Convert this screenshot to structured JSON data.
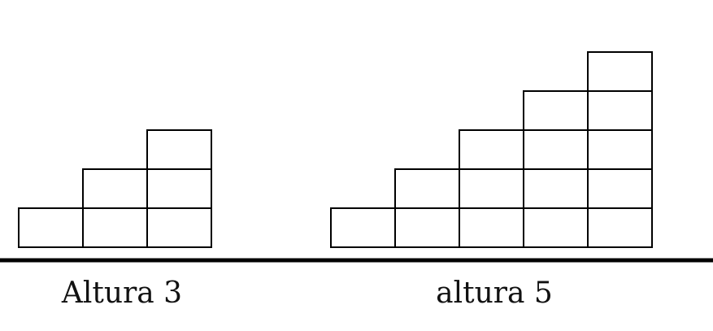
{
  "staircases": [
    {
      "label": "Altura 3",
      "height": 3
    },
    {
      "label": "altura 5",
      "height": 5
    }
  ],
  "colors": {
    "line": "#000000",
    "cell_fill": "#ffffff",
    "text": "#111111"
  }
}
